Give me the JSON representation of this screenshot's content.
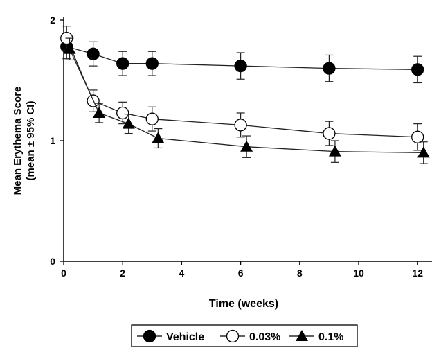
{
  "chart_data": {
    "type": "line",
    "title": "",
    "xlabel": "Time (weeks)",
    "ylabel_line1": "Mean Erythema Score",
    "ylabel_line2": "(mean ± 95% CI)",
    "xlim": [
      0,
      12.5
    ],
    "ylim": [
      0,
      2
    ],
    "xticks": [
      0,
      2,
      4,
      6,
      8,
      10,
      12
    ],
    "yticks": [
      0,
      1,
      2
    ],
    "grid": false,
    "legend_placement": "bottom-center",
    "series": [
      {
        "name": "Vehicle",
        "marker": "filled-circle",
        "x": [
          0.1,
          1,
          2,
          3,
          6,
          9,
          12
        ],
        "y": [
          1.78,
          1.72,
          1.64,
          1.64,
          1.62,
          1.6,
          1.59
        ],
        "ci": [
          0.1,
          0.1,
          0.1,
          0.1,
          0.11,
          0.11,
          0.11
        ]
      },
      {
        "name": "0.03%",
        "marker": "open-circle",
        "x": [
          0.1,
          1,
          2,
          3,
          6,
          9,
          12
        ],
        "y": [
          1.85,
          1.33,
          1.23,
          1.18,
          1.13,
          1.06,
          1.03
        ],
        "ci": [
          0.1,
          0.09,
          0.09,
          0.1,
          0.1,
          0.1,
          0.11
        ]
      },
      {
        "name": "0.1%",
        "marker": "filled-triangle",
        "x": [
          0.2,
          1.2,
          2.2,
          3.2,
          6.2,
          9.2,
          12.2
        ],
        "y": [
          1.76,
          1.23,
          1.14,
          1.02,
          0.95,
          0.91,
          0.9
        ],
        "ci": [
          0.09,
          0.08,
          0.08,
          0.08,
          0.09,
          0.09,
          0.09
        ]
      }
    ]
  }
}
